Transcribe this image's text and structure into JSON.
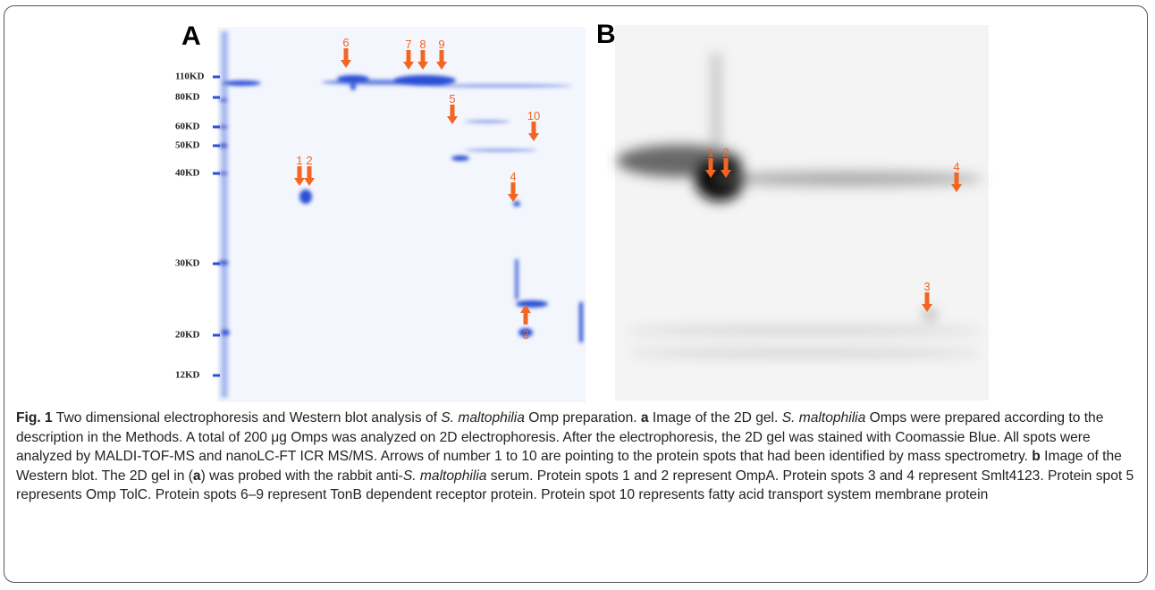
{
  "figure": {
    "panels": [
      {
        "label": "A",
        "markers": [
          "110KD",
          "80KD",
          "60KD",
          "50KD",
          "40KD",
          "30KD",
          "20KD",
          "12KD"
        ],
        "spots": [
          "6",
          "7",
          "8",
          "9",
          "5",
          "10",
          "1",
          "2",
          "4",
          "3"
        ]
      },
      {
        "label": "B",
        "spots": [
          "1",
          "2",
          "4",
          "3"
        ]
      }
    ],
    "caption": [
      "Fig. 1",
      " Two dimensional electrophoresis and Western blot analysis of ",
      "S. maltophilia",
      " Omp preparation. ",
      "a",
      " Image of the 2D gel. ",
      "S. maltophilia",
      " Omps were prepared according to the description in the Methods. A total of 200 μg Omps was analyzed on 2D electrophoresis. After the electrophoresis, the 2D gel was stained with Coomassie Blue. All spots were analyzed by MALDI-TOF-MS and nanoLC-FT ICR MS/MS. Arrows of number 1 to 10 are pointing to the protein spots that had been identified by mass spectrometry. ",
      "b",
      " Image of the Western blot. The 2D gel in (",
      "a",
      ") was probed with the rabbit anti-",
      "S. maltophilia",
      " serum. Protein spots 1 and 2 represent OmpA. Protein spots 3 and 4 represent Smlt4123. Protein spot 5 represents Omp TolC. Protein spots 6–9 represent TonB dependent receptor protein. Protein spot 10 represents fatty acid transport system membrane protein"
    ]
  }
}
